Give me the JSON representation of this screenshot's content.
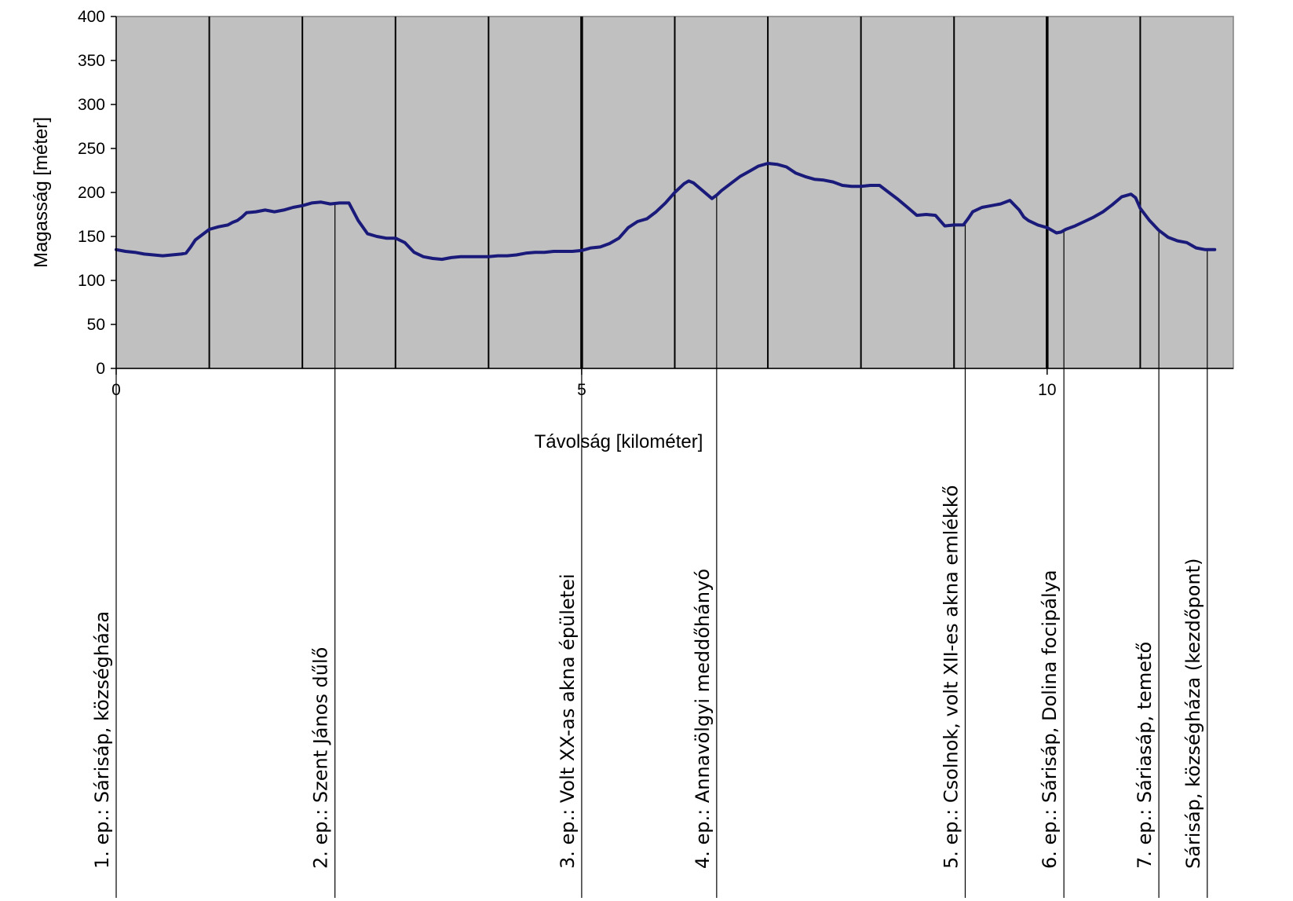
{
  "chart_data": {
    "type": "line",
    "xlabel": "Távolság [kilométer]",
    "ylabel": "Magasság [méter]",
    "xlim": [
      0,
      12
    ],
    "ylim": [
      0,
      400
    ],
    "xticks": [
      0,
      5,
      10
    ],
    "yticks": [
      0,
      50,
      100,
      150,
      200,
      250,
      300,
      350,
      400
    ],
    "grid": "vertical lines every 1 km, plot background gray",
    "series": [
      {
        "color": "#1a1a7a",
        "x": [
          0,
          0.1,
          0.2,
          0.3,
          0.4,
          0.5,
          0.6,
          0.7,
          0.75,
          0.8,
          0.85,
          0.9,
          1.0,
          1.1,
          1.2,
          1.25,
          1.3,
          1.35,
          1.4,
          1.5,
          1.6,
          1.7,
          1.8,
          1.9,
          2.0,
          2.1,
          2.2,
          2.3,
          2.4,
          2.5,
          2.6,
          2.7,
          2.8,
          2.9,
          3.0,
          3.1,
          3.2,
          3.3,
          3.4,
          3.5,
          3.6,
          3.7,
          3.8,
          3.9,
          4.0,
          4.1,
          4.2,
          4.3,
          4.4,
          4.5,
          4.6,
          4.7,
          4.8,
          4.9,
          5.0,
          5.1,
          5.2,
          5.3,
          5.4,
          5.5,
          5.6,
          5.7,
          5.8,
          5.9,
          6.0,
          6.1,
          6.15,
          6.2,
          6.3,
          6.4,
          6.45,
          6.5,
          6.6,
          6.7,
          6.8,
          6.9,
          7.0,
          7.1,
          7.2,
          7.3,
          7.4,
          7.5,
          7.6,
          7.7,
          7.8,
          7.9,
          8.0,
          8.1,
          8.2,
          8.3,
          8.4,
          8.5,
          8.6,
          8.7,
          8.8,
          8.9,
          9.0,
          9.1,
          9.15,
          9.2,
          9.3,
          9.4,
          9.5,
          9.6,
          9.7,
          9.75,
          9.8,
          9.9,
          10.0,
          10.1,
          10.15,
          10.2,
          10.3,
          10.4,
          10.5,
          10.6,
          10.7,
          10.8,
          10.9,
          10.95,
          11.0,
          11.1,
          11.2,
          11.3,
          11.4,
          11.5,
          11.6,
          11.7,
          11.8
        ],
        "y": [
          135,
          133,
          132,
          130,
          129,
          128,
          129,
          130,
          131,
          138,
          146,
          150,
          158,
          161,
          163,
          166,
          168,
          172,
          177,
          178,
          180,
          178,
          180,
          183,
          185,
          188,
          189,
          187,
          188,
          188,
          168,
          153,
          150,
          148,
          148,
          143,
          132,
          127,
          125,
          124,
          126,
          127,
          127,
          127,
          127,
          128,
          128,
          129,
          131,
          132,
          132,
          133,
          133,
          133,
          134,
          137,
          138,
          142,
          148,
          160,
          167,
          170,
          178,
          188,
          200,
          210,
          213,
          211,
          202,
          193,
          197,
          202,
          210,
          218,
          224,
          230,
          233,
          232,
          229,
          222,
          218,
          215,
          214,
          212,
          208,
          207,
          207,
          208,
          208,
          200,
          192,
          183,
          174,
          175,
          174,
          162,
          163,
          163,
          170,
          178,
          183,
          185,
          187,
          191,
          180,
          172,
          168,
          163,
          160,
          154,
          155,
          158,
          162,
          167,
          172,
          178,
          186,
          195,
          198,
          194,
          182,
          168,
          157,
          149,
          145,
          143,
          137,
          135,
          135
        ]
      }
    ],
    "markers": [
      {
        "x": 0.0,
        "label": "1. ep.: Sárisáp, községháza"
      },
      {
        "x": 2.35,
        "label": "2. ep.: Szent János dűlő"
      },
      {
        "x": 5.0,
        "label": "3. ep.: Volt XX-as akna épületei"
      },
      {
        "x": 6.45,
        "label": "4. ep.: Annavölgyi meddőhányó"
      },
      {
        "x": 9.12,
        "label": "5. ep.: Csolnok, volt XII-es akna emlékkő"
      },
      {
        "x": 10.18,
        "label": "6. ep.: Sárisáp, Dolina focipálya"
      },
      {
        "x": 11.2,
        "label": "7.  ep.: Sáriasáp, temető"
      },
      {
        "x": 11.72,
        "label": "Sárisáp, községháza (kezdőpont)"
      }
    ]
  }
}
